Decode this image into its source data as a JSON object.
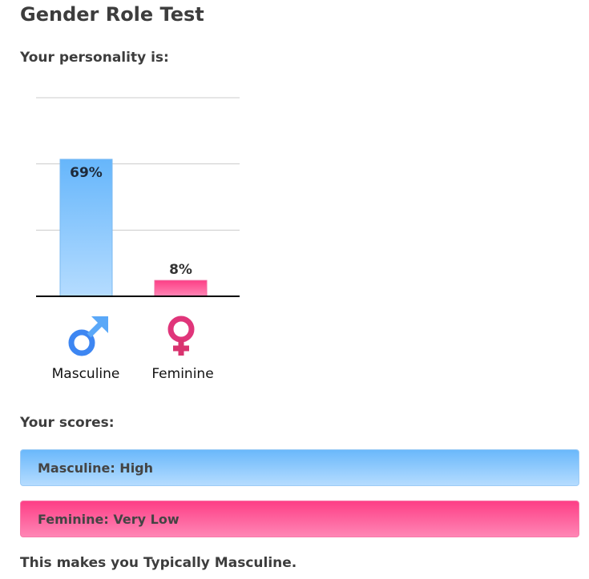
{
  "title": "Gender Role Test",
  "personality_heading": "Your personality is:",
  "scores_heading": "Your scores:",
  "chart_data": {
    "type": "bar",
    "categories": [
      "Masculine",
      "Feminine"
    ],
    "values": [
      69,
      8
    ],
    "value_labels": [
      "69%",
      "8%"
    ],
    "ylim": [
      0,
      100
    ],
    "grid": true,
    "icons": [
      "male-symbol-icon",
      "female-symbol-icon"
    ],
    "colors": [
      "#6ab8fb",
      "#fd3f86"
    ]
  },
  "scores": [
    {
      "label": "Masculine: High"
    },
    {
      "label": "Feminine: Very Low"
    }
  ],
  "conclusion": "This makes you Typically Masculine."
}
